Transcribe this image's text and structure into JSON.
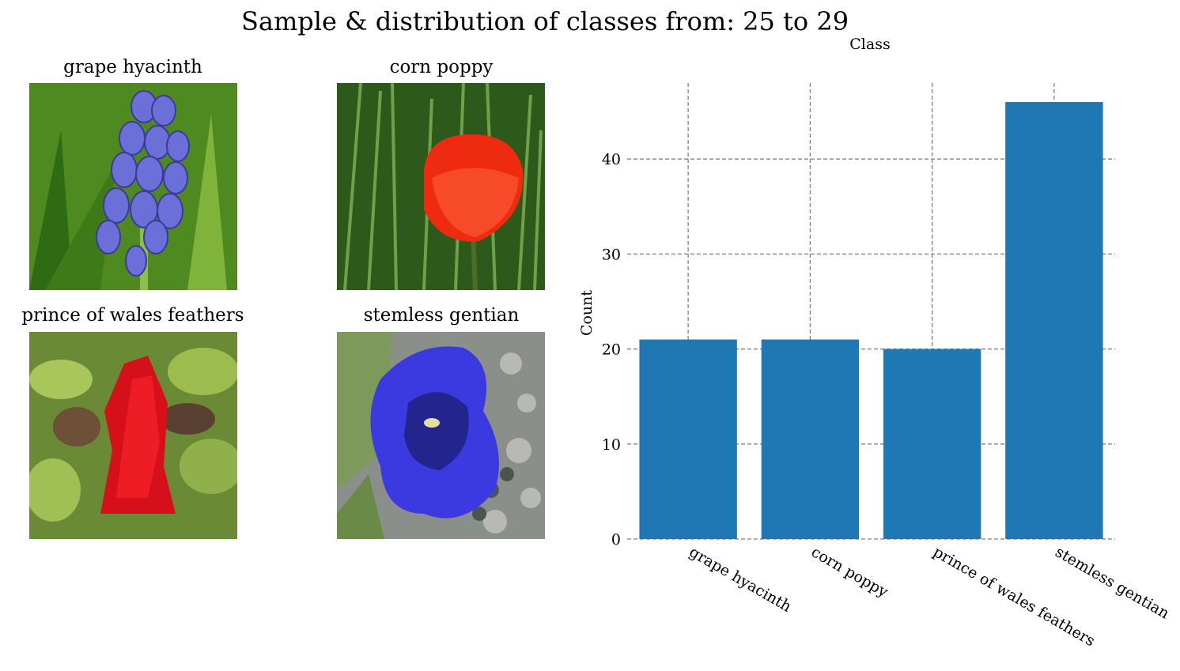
{
  "figure": {
    "title": "Sample & distribution of classes from: 25 to 29"
  },
  "samples": [
    {
      "label": "grape hyacinth",
      "image": "grape-hyacinth-photo"
    },
    {
      "label": "corn poppy",
      "image": "corn-poppy-photo"
    },
    {
      "label": "prince of wales feathers",
      "image": "prince-of-wales-feathers-photo"
    },
    {
      "label": "stemless gentian",
      "image": "stemless-gentian-photo"
    }
  ],
  "chart_data": {
    "type": "bar",
    "categories": [
      "grape hyacinth",
      "corn poppy",
      "prince of wales feathers",
      "stemless gentian"
    ],
    "values": [
      21,
      21,
      20,
      46
    ],
    "title": "Class",
    "xlabel": "",
    "ylabel": "Count",
    "ylim": [
      0,
      48
    ],
    "yticks": [
      0,
      10,
      20,
      30,
      40
    ],
    "grid": true,
    "bar_color": "#1f77b4",
    "grid_color": "#808080"
  }
}
